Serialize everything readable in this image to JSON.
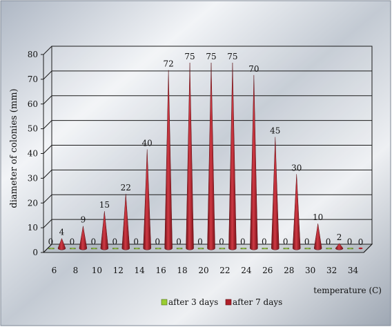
{
  "chart_data": {
    "type": "bar",
    "categories": [
      "6",
      "8",
      "10",
      "12",
      "14",
      "16",
      "18",
      "20",
      "22",
      "24",
      "26",
      "28",
      "30",
      "32",
      "34"
    ],
    "series": [
      {
        "name": "after 3 days",
        "values": [
          0,
          0,
          0,
          0,
          0,
          0,
          0,
          0,
          0,
          0,
          0,
          0,
          0,
          0,
          0
        ],
        "color": "#9acd32"
      },
      {
        "name": "after 7 days",
        "values": [
          4,
          9,
          15,
          22,
          40,
          72,
          75,
          75,
          75,
          70,
          45,
          30,
          10,
          2,
          0
        ],
        "color": "#b0202a"
      }
    ],
    "ylabel": "diameter of colonies (mm)",
    "xlabel": "temperature (C)",
    "ylim": [
      0,
      80
    ],
    "yticks": [
      "0",
      "10",
      "20",
      "30",
      "40",
      "50",
      "60",
      "70",
      "80"
    ],
    "grid": true,
    "legend_position": "bottom"
  }
}
